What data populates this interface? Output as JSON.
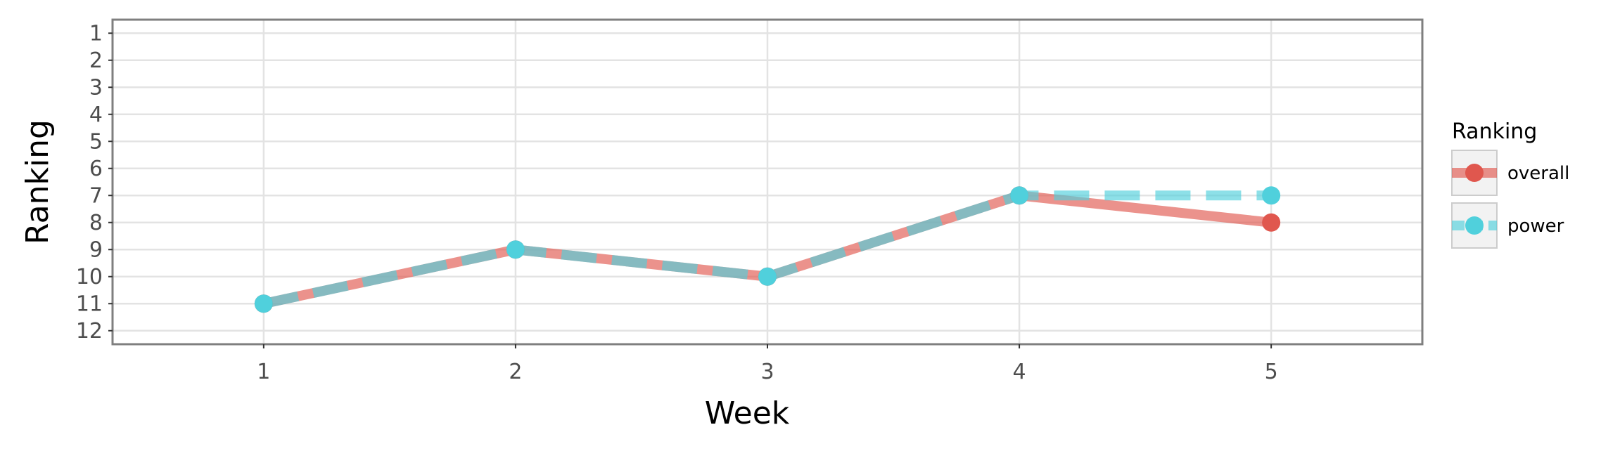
{
  "chart_data": {
    "type": "line",
    "title": "",
    "xlabel": "Week",
    "ylabel": "Ranking",
    "x": [
      1,
      2,
      3,
      4,
      5
    ],
    "x_ticks": [
      "1",
      "2",
      "3",
      "4",
      "5"
    ],
    "y_ticks": [
      "1",
      "2",
      "3",
      "4",
      "5",
      "6",
      "7",
      "8",
      "9",
      "10",
      "11",
      "12"
    ],
    "xlim": [
      0.4,
      5.6
    ],
    "ylim": [
      12.5,
      0.5
    ],
    "y_reversed": true,
    "grid": true,
    "legend_position": "right",
    "legend_title": "Ranking",
    "series": [
      {
        "name": "overall",
        "values": [
          11,
          9,
          10,
          7,
          8
        ],
        "color": "#e0574e",
        "line_style": "solid"
      },
      {
        "name": "power",
        "values": [
          11,
          9,
          10,
          7,
          7
        ],
        "color": "#50d0dc",
        "line_style": "dashed"
      }
    ]
  }
}
